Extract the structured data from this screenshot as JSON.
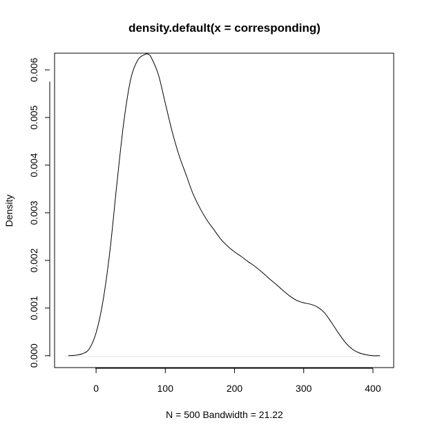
{
  "chart_data": {
    "type": "line",
    "title": "density.default(x = corresponding)",
    "xlabel": "N = 500   Bandwidth = 21.22",
    "ylabel": "Density",
    "xlim": [
      -60,
      430
    ],
    "ylim": [
      -0.00025,
      0.00635
    ],
    "x_ticks": [
      0,
      100,
      200,
      300,
      400
    ],
    "x_tick_labels": [
      "0",
      "100",
      "200",
      "300",
      "400"
    ],
    "y_ticks": [
      0,
      0.001,
      0.002,
      0.003,
      0.004,
      0.005,
      0.006
    ],
    "y_tick_labels": [
      "0.000",
      "0.001",
      "0.002",
      "0.003",
      "0.004",
      "0.005",
      "0.006"
    ],
    "grid": false,
    "series": [
      {
        "x": [
          -40,
          -30,
          -20,
          -10,
          0,
          10,
          20,
          30,
          40,
          50,
          60,
          70,
          75,
          80,
          90,
          100,
          110,
          120,
          130,
          140,
          150,
          160,
          170,
          180,
          190,
          200,
          210,
          220,
          230,
          240,
          250,
          260,
          270,
          280,
          290,
          300,
          310,
          320,
          330,
          340,
          350,
          360,
          370,
          380,
          390,
          400,
          410
        ],
        "y": [
          0.0,
          1e-05,
          4e-05,
          0.00014,
          0.00048,
          0.00115,
          0.0022,
          0.0036,
          0.0049,
          0.0058,
          0.0062,
          0.00632,
          0.00633,
          0.00625,
          0.0059,
          0.0053,
          0.0047,
          0.0042,
          0.0038,
          0.0034,
          0.0031,
          0.00285,
          0.00265,
          0.00245,
          0.0023,
          0.00218,
          0.00208,
          0.00197,
          0.00187,
          0.00175,
          0.00162,
          0.0015,
          0.00137,
          0.00125,
          0.00116,
          0.00111,
          0.00108,
          0.00102,
          0.0009,
          0.0007,
          0.00048,
          0.00028,
          0.00014,
          6e-05,
          2e-05,
          0.0,
          0.0
        ]
      }
    ]
  }
}
